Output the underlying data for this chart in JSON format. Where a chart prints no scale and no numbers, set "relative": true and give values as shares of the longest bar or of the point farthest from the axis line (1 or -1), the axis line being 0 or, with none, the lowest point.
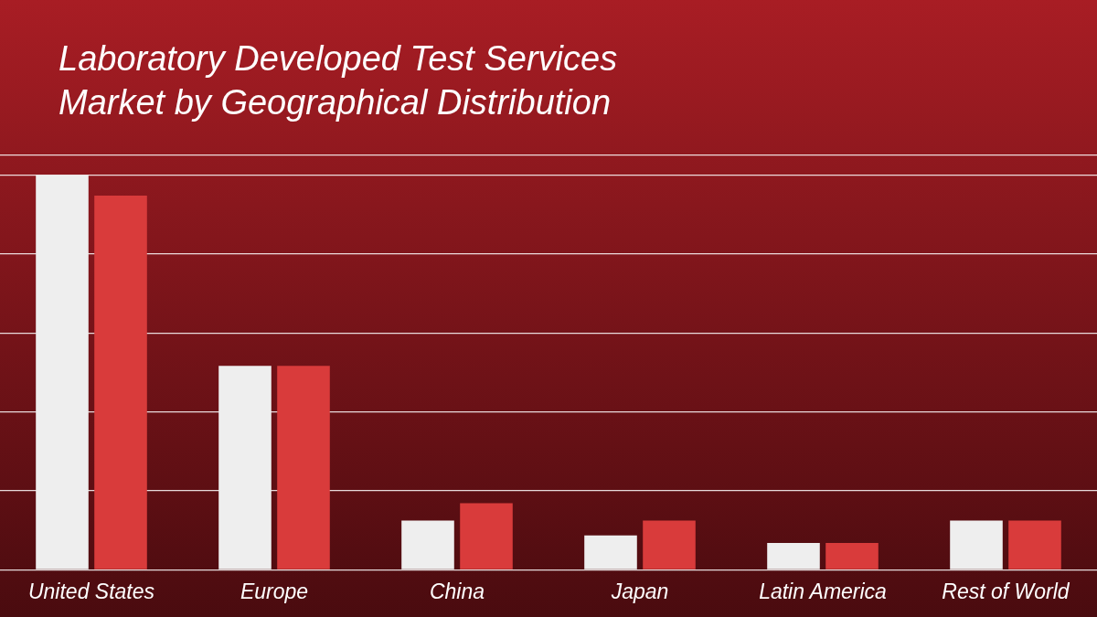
{
  "chart_data": {
    "type": "bar",
    "title": "Laboratory Developed Test Services\nMarket by Geographical Distribution",
    "categories": [
      "United States",
      "Europe",
      "China",
      "Japan",
      "Latin America",
      "Rest of World"
    ],
    "relative": true,
    "grid": "y",
    "series": [
      {
        "color": "#eeeeee",
        "values": [
          1,
          0.517,
          0.125,
          0.087,
          0.068,
          0.125
        ]
      },
      {
        "color": "#d93b3b",
        "values": [
          0.948,
          0.517,
          0.169,
          0.125,
          0.068,
          0.125
        ]
      }
    ]
  }
}
